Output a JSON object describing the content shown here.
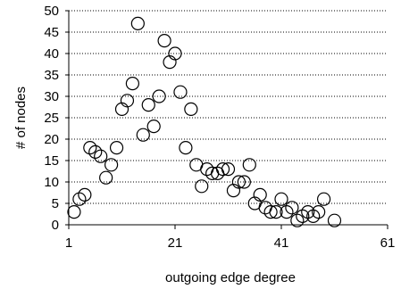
{
  "chart_data": {
    "type": "scatter",
    "title": "",
    "xlabel": "outgoing edge degree",
    "ylabel": "# of nodes",
    "xlim": [
      1,
      61
    ],
    "ylim": [
      0,
      50
    ],
    "xticks": [
      1,
      21,
      41,
      61
    ],
    "yticks": [
      0,
      5,
      10,
      15,
      20,
      25,
      30,
      35,
      40,
      45,
      50
    ],
    "grid": "horizontal dotted",
    "marker": "open circle",
    "series": [
      {
        "points": [
          [
            2,
            3
          ],
          [
            3,
            6
          ],
          [
            4,
            7
          ],
          [
            5,
            18
          ],
          [
            6,
            17
          ],
          [
            7,
            16
          ],
          [
            8,
            11
          ],
          [
            9,
            14
          ],
          [
            10,
            18
          ],
          [
            11,
            27
          ],
          [
            12,
            29
          ],
          [
            13,
            33
          ],
          [
            14,
            47
          ],
          [
            15,
            21
          ],
          [
            16,
            28
          ],
          [
            17,
            23
          ],
          [
            18,
            30
          ],
          [
            19,
            43
          ],
          [
            20,
            38
          ],
          [
            21,
            40
          ],
          [
            22,
            31
          ],
          [
            23,
            18
          ],
          [
            24,
            27
          ],
          [
            25,
            14
          ],
          [
            26,
            9
          ],
          [
            27,
            13
          ],
          [
            28,
            12
          ],
          [
            29,
            12
          ],
          [
            30,
            13
          ],
          [
            31,
            13
          ],
          [
            32,
            8
          ],
          [
            33,
            10
          ],
          [
            34,
            10
          ],
          [
            35,
            14
          ],
          [
            36,
            5
          ],
          [
            37,
            7
          ],
          [
            38,
            4
          ],
          [
            39,
            3
          ],
          [
            40,
            3
          ],
          [
            41,
            6
          ],
          [
            42,
            3
          ],
          [
            43,
            4
          ],
          [
            44,
            1
          ],
          [
            45,
            2
          ],
          [
            46,
            3
          ],
          [
            47,
            2
          ],
          [
            48,
            3
          ],
          [
            49,
            6
          ],
          [
            51,
            1
          ]
        ]
      }
    ]
  }
}
